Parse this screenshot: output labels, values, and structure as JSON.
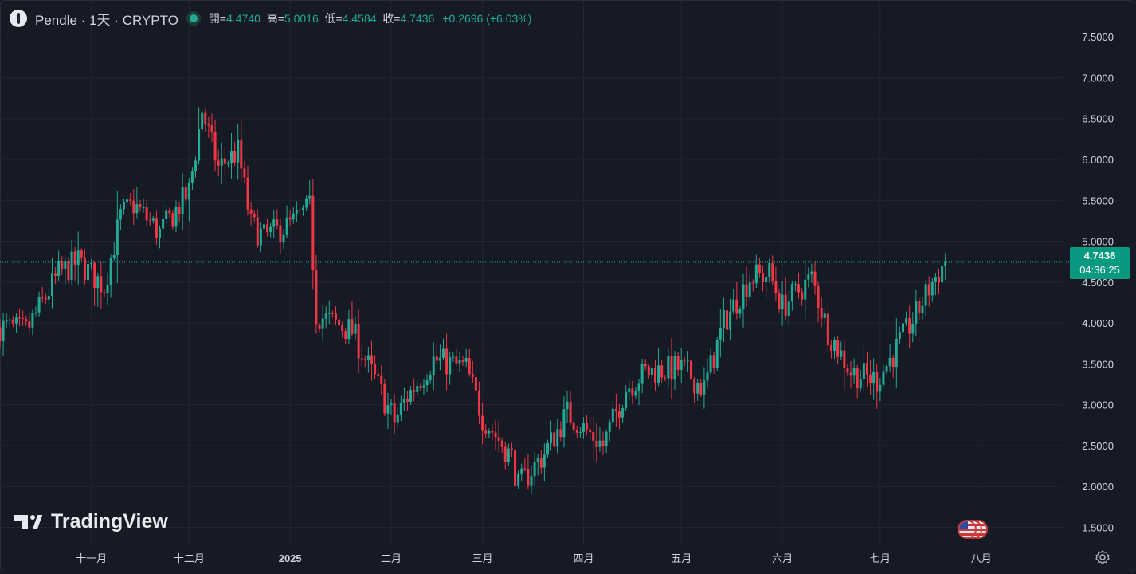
{
  "header": {
    "symbol": "Pendle",
    "separator1": "·",
    "interval": "1天",
    "separator2": "·",
    "exchange": "CRYPTO",
    "open_label": "開=",
    "open_value": "4.4740",
    "high_label": "高=",
    "high_value": "5.0016",
    "low_label": "低=",
    "low_value": "4.4584",
    "close_label": "收=",
    "close_value": "4.7436",
    "change": "+0.2696 (+6.03%)"
  },
  "price_badge": {
    "price": "4.7436",
    "countdown": "04:36:25"
  },
  "logo": {
    "text": "TradingView"
  },
  "colors": {
    "background": "#161a25",
    "up": "#22ab94",
    "down": "#f23645",
    "grid": "#232632",
    "text": "#d1d4dc",
    "badge": "#089981"
  },
  "icons": [
    "pendle-coin-icon",
    "market-status-icon",
    "tradingview-logo-icon",
    "us-flag-event-icon",
    "settings-gear-icon"
  ],
  "chart_data": {
    "type": "candlestick",
    "title": "",
    "y_ticks": [
      "7.5000",
      "7.0000",
      "6.5000",
      "6.0000",
      "5.5000",
      "5.0000",
      "4.5000",
      "4.0000",
      "3.5000",
      "3.0000",
      "2.5000",
      "2.0000",
      "1.5000"
    ],
    "ylim": [
      1.3,
      7.95
    ],
    "x_ticks": [
      "十一月",
      "十二月",
      "2025",
      "二月",
      "三月",
      "四月",
      "五月",
      "六月",
      "七月",
      "八月"
    ],
    "x_tick_dates": [
      "2024-11-01",
      "2024-12-01",
      "2025-01-01",
      "2025-02-01",
      "2025-03-01",
      "2025-04-01",
      "2025-05-01",
      "2025-06-01",
      "2025-07-01",
      "2025-08-01"
    ],
    "xlim": [
      "2024-10-04",
      "2025-08-26"
    ],
    "last_price": 4.7436,
    "grid": true,
    "series_waypoints": [
      {
        "x": "2024-10-04",
        "y": 3.95
      },
      {
        "x": "2024-10-12",
        "y": 3.9
      },
      {
        "x": "2024-10-22",
        "y": 4.6
      },
      {
        "x": "2024-10-28",
        "y": 4.75
      },
      {
        "x": "2024-11-05",
        "y": 4.45
      },
      {
        "x": "2024-11-10",
        "y": 5.3
      },
      {
        "x": "2024-11-14",
        "y": 5.45
      },
      {
        "x": "2024-11-22",
        "y": 5.1
      },
      {
        "x": "2024-12-01",
        "y": 5.6
      },
      {
        "x": "2024-12-05",
        "y": 6.6
      },
      {
        "x": "2024-12-10",
        "y": 5.9
      },
      {
        "x": "2024-12-16",
        "y": 6.1
      },
      {
        "x": "2024-12-20",
        "y": 5.2
      },
      {
        "x": "2024-12-24",
        "y": 5.05
      },
      {
        "x": "2025-01-01",
        "y": 5.2
      },
      {
        "x": "2025-01-07",
        "y": 5.4
      },
      {
        "x": "2025-01-09",
        "y": 4.1
      },
      {
        "x": "2025-01-20",
        "y": 3.9
      },
      {
        "x": "2025-02-02",
        "y": 2.8
      },
      {
        "x": "2025-02-06",
        "y": 3.1
      },
      {
        "x": "2025-02-14",
        "y": 3.55
      },
      {
        "x": "2025-02-24",
        "y": 3.45
      },
      {
        "x": "2025-03-01",
        "y": 2.85
      },
      {
        "x": "2025-03-10",
        "y": 2.35
      },
      {
        "x": "2025-03-12",
        "y": 2.0
      },
      {
        "x": "2025-03-20",
        "y": 2.4
      },
      {
        "x": "2025-03-27",
        "y": 2.9
      },
      {
        "x": "2025-04-07",
        "y": 2.5
      },
      {
        "x": "2025-04-14",
        "y": 3.2
      },
      {
        "x": "2025-04-20",
        "y": 3.4
      },
      {
        "x": "2025-05-01",
        "y": 3.45
      },
      {
        "x": "2025-05-08",
        "y": 3.2
      },
      {
        "x": "2025-05-14",
        "y": 4.0
      },
      {
        "x": "2025-05-22",
        "y": 4.55
      },
      {
        "x": "2025-05-28",
        "y": 4.6
      },
      {
        "x": "2025-06-01",
        "y": 4.2
      },
      {
        "x": "2025-06-10",
        "y": 4.55
      },
      {
        "x": "2025-06-15",
        "y": 3.9
      },
      {
        "x": "2025-06-22",
        "y": 3.4
      },
      {
        "x": "2025-06-30",
        "y": 3.3
      },
      {
        "x": "2025-07-04",
        "y": 3.55
      },
      {
        "x": "2025-07-12",
        "y": 4.1
      },
      {
        "x": "2025-07-17",
        "y": 4.5
      },
      {
        "x": "2025-07-21",
        "y": 4.74
      }
    ]
  }
}
